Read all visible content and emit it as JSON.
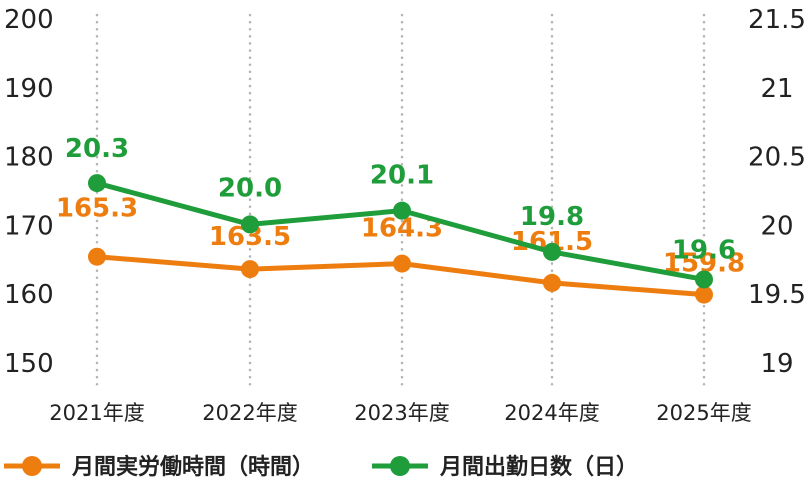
{
  "chart_data": {
    "type": "line",
    "categories": [
      "2021年度",
      "2022年度",
      "2023年度",
      "2024年度",
      "2025年度"
    ],
    "y_left": {
      "min": 150,
      "max": 200,
      "ticks": [
        "150",
        "160",
        "170",
        "180",
        "190",
        "200"
      ]
    },
    "y_right": {
      "min": 19,
      "max": 21.5,
      "ticks": [
        "19",
        "19.5",
        "20",
        "20.5",
        "21",
        "21.5"
      ]
    },
    "grid": "vertical-dotted",
    "legend_position": "bottom-left",
    "series": [
      {
        "name": "月間実労働時間（時間）",
        "axis": "left",
        "color": "#ee7d10",
        "values": [
          165.3,
          163.5,
          164.3,
          161.5,
          159.8
        ],
        "labels": [
          "165.3",
          "163.5",
          "164.3",
          "161.5",
          "159.8"
        ]
      },
      {
        "name": "月間出勤日数（日）",
        "axis": "right",
        "color": "#1f9d3a",
        "values": [
          20.3,
          20.0,
          20.1,
          19.8,
          19.6
        ],
        "labels": [
          "20.3",
          "20.0",
          "20.1",
          "19.8",
          "19.6"
        ]
      }
    ]
  }
}
